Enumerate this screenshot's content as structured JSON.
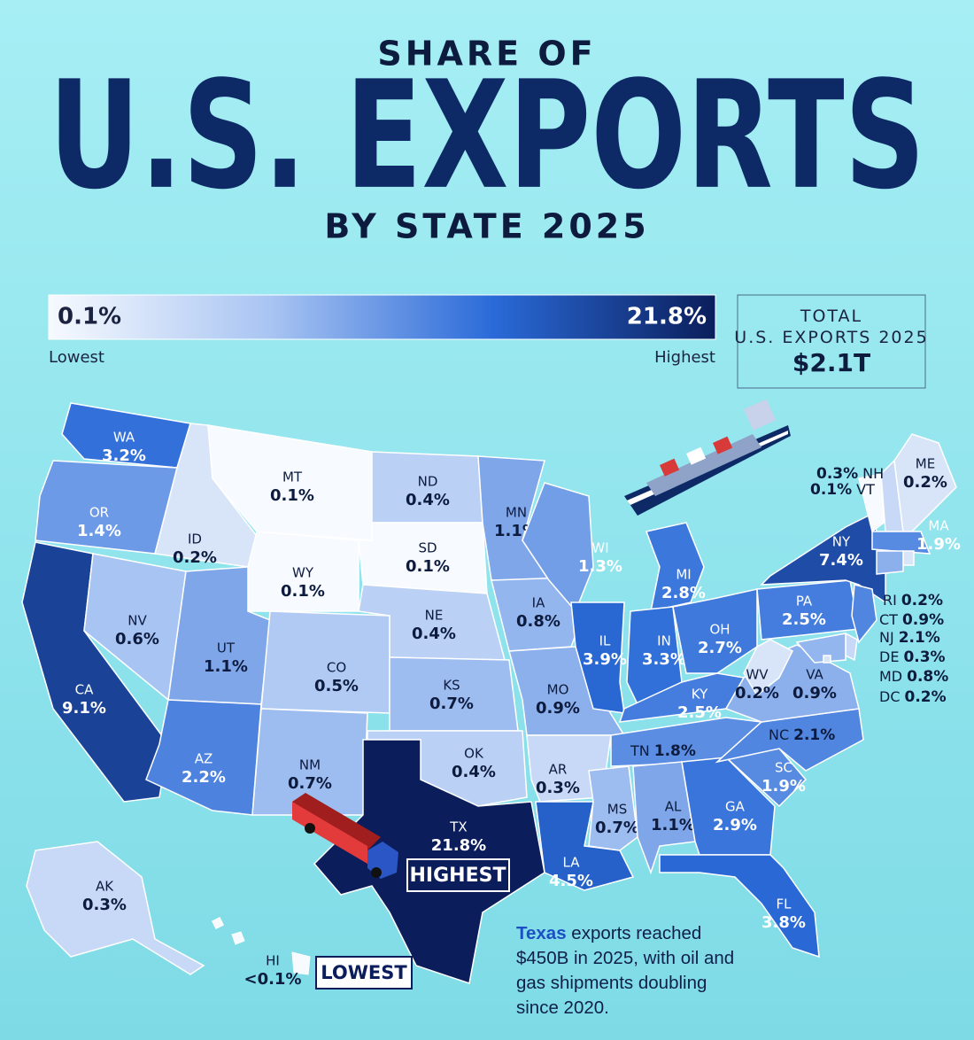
{
  "header": {
    "kicker": "SHARE OF",
    "title": "U.S. EXPORTS",
    "subtitle": "BY STATE 2025"
  },
  "scale": {
    "low": {
      "value": 0.1,
      "label": "0.1%",
      "caption": "Lowest"
    },
    "high": {
      "value": 21.8,
      "label": "21.8%",
      "caption": "Highest"
    },
    "colors": [
      "#f7fafe",
      "#a8c4f2",
      "#2a6ad8",
      "#0b1e5b"
    ]
  },
  "total": {
    "label": "TOTAL U.S. EXPORTS 2025",
    "value": "$2.1T"
  },
  "states": [
    {
      "abbr": "WA",
      "label": "3.2%",
      "value": 3.2
    },
    {
      "abbr": "OR",
      "label": "1.4%",
      "value": 1.4
    },
    {
      "abbr": "CA",
      "label": "9.1%",
      "value": 9.1
    },
    {
      "abbr": "NV",
      "label": "0.6%",
      "value": 0.6
    },
    {
      "abbr": "ID",
      "label": "0.2%",
      "value": 0.2
    },
    {
      "abbr": "MT",
      "label": "0.1%",
      "value": 0.1
    },
    {
      "abbr": "WY",
      "label": "0.1%",
      "value": 0.1
    },
    {
      "abbr": "UT",
      "label": "1.1%",
      "value": 1.1
    },
    {
      "abbr": "CO",
      "label": "0.5%",
      "value": 0.5
    },
    {
      "abbr": "AZ",
      "label": "2.2%",
      "value": 2.2
    },
    {
      "abbr": "NM",
      "label": "0.7%",
      "value": 0.7
    },
    {
      "abbr": "ND",
      "label": "0.4%",
      "value": 0.4
    },
    {
      "abbr": "SD",
      "label": "0.1%",
      "value": 0.1
    },
    {
      "abbr": "NE",
      "label": "0.4%",
      "value": 0.4
    },
    {
      "abbr": "KS",
      "label": "0.7%",
      "value": 0.7
    },
    {
      "abbr": "OK",
      "label": "0.4%",
      "value": 0.4
    },
    {
      "abbr": "TX",
      "label": "21.8%",
      "value": 21.8
    },
    {
      "abbr": "MN",
      "label": "1.1%",
      "value": 1.1
    },
    {
      "abbr": "IA",
      "label": "0.8%",
      "value": 0.8
    },
    {
      "abbr": "MO",
      "label": "0.9%",
      "value": 0.9
    },
    {
      "abbr": "AR",
      "label": "0.3%",
      "value": 0.3
    },
    {
      "abbr": "LA",
      "label": "4.5%",
      "value": 4.5
    },
    {
      "abbr": "WI",
      "label": "1.3%",
      "value": 1.3
    },
    {
      "abbr": "IL",
      "label": "3.9%",
      "value": 3.9
    },
    {
      "abbr": "MI",
      "label": "2.8%",
      "value": 2.8
    },
    {
      "abbr": "IN",
      "label": "3.3%",
      "value": 3.3
    },
    {
      "abbr": "OH",
      "label": "2.7%",
      "value": 2.7
    },
    {
      "abbr": "KY",
      "label": "2.5%",
      "value": 2.5
    },
    {
      "abbr": "TN",
      "label": "1.8%",
      "value": 1.8
    },
    {
      "abbr": "MS",
      "label": "0.7%",
      "value": 0.7
    },
    {
      "abbr": "AL",
      "label": "1.1%",
      "value": 1.1
    },
    {
      "abbr": "GA",
      "label": "2.9%",
      "value": 2.9
    },
    {
      "abbr": "FL",
      "label": "3.8%",
      "value": 3.8
    },
    {
      "abbr": "SC",
      "label": "1.9%",
      "value": 1.9
    },
    {
      "abbr": "NC",
      "label": "2.1%",
      "value": 2.1
    },
    {
      "abbr": "VA",
      "label": "0.9%",
      "value": 0.9
    },
    {
      "abbr": "WV",
      "label": "0.2%",
      "value": 0.2
    },
    {
      "abbr": "PA",
      "label": "2.5%",
      "value": 2.5
    },
    {
      "abbr": "NY",
      "label": "7.4%",
      "value": 7.4
    },
    {
      "abbr": "VT",
      "label": "0.1%",
      "value": 0.1
    },
    {
      "abbr": "NH",
      "label": "0.3%",
      "value": 0.3
    },
    {
      "abbr": "ME",
      "label": "0.2%",
      "value": 0.2
    },
    {
      "abbr": "MA",
      "label": "1.9%",
      "value": 1.9
    },
    {
      "abbr": "RI",
      "label": "0.2%",
      "value": 0.2
    },
    {
      "abbr": "CT",
      "label": "0.9%",
      "value": 0.9
    },
    {
      "abbr": "NJ",
      "label": "2.1%",
      "value": 2.1
    },
    {
      "abbr": "DE",
      "label": "0.3%",
      "value": 0.3
    },
    {
      "abbr": "MD",
      "label": "0.8%",
      "value": 0.8
    },
    {
      "abbr": "DC",
      "label": "0.2%",
      "value": 0.2
    },
    {
      "abbr": "AK",
      "label": "0.3%",
      "value": 0.3
    },
    {
      "abbr": "HI",
      "label": "<0.1%"
    }
  ],
  "badges": {
    "highest": "HIGHEST",
    "lowest": "LOWEST"
  },
  "note": {
    "highlight": "Texas",
    "text": " exports reached $450B in 2025, with oil and gas shipments doubling since 2020."
  }
}
